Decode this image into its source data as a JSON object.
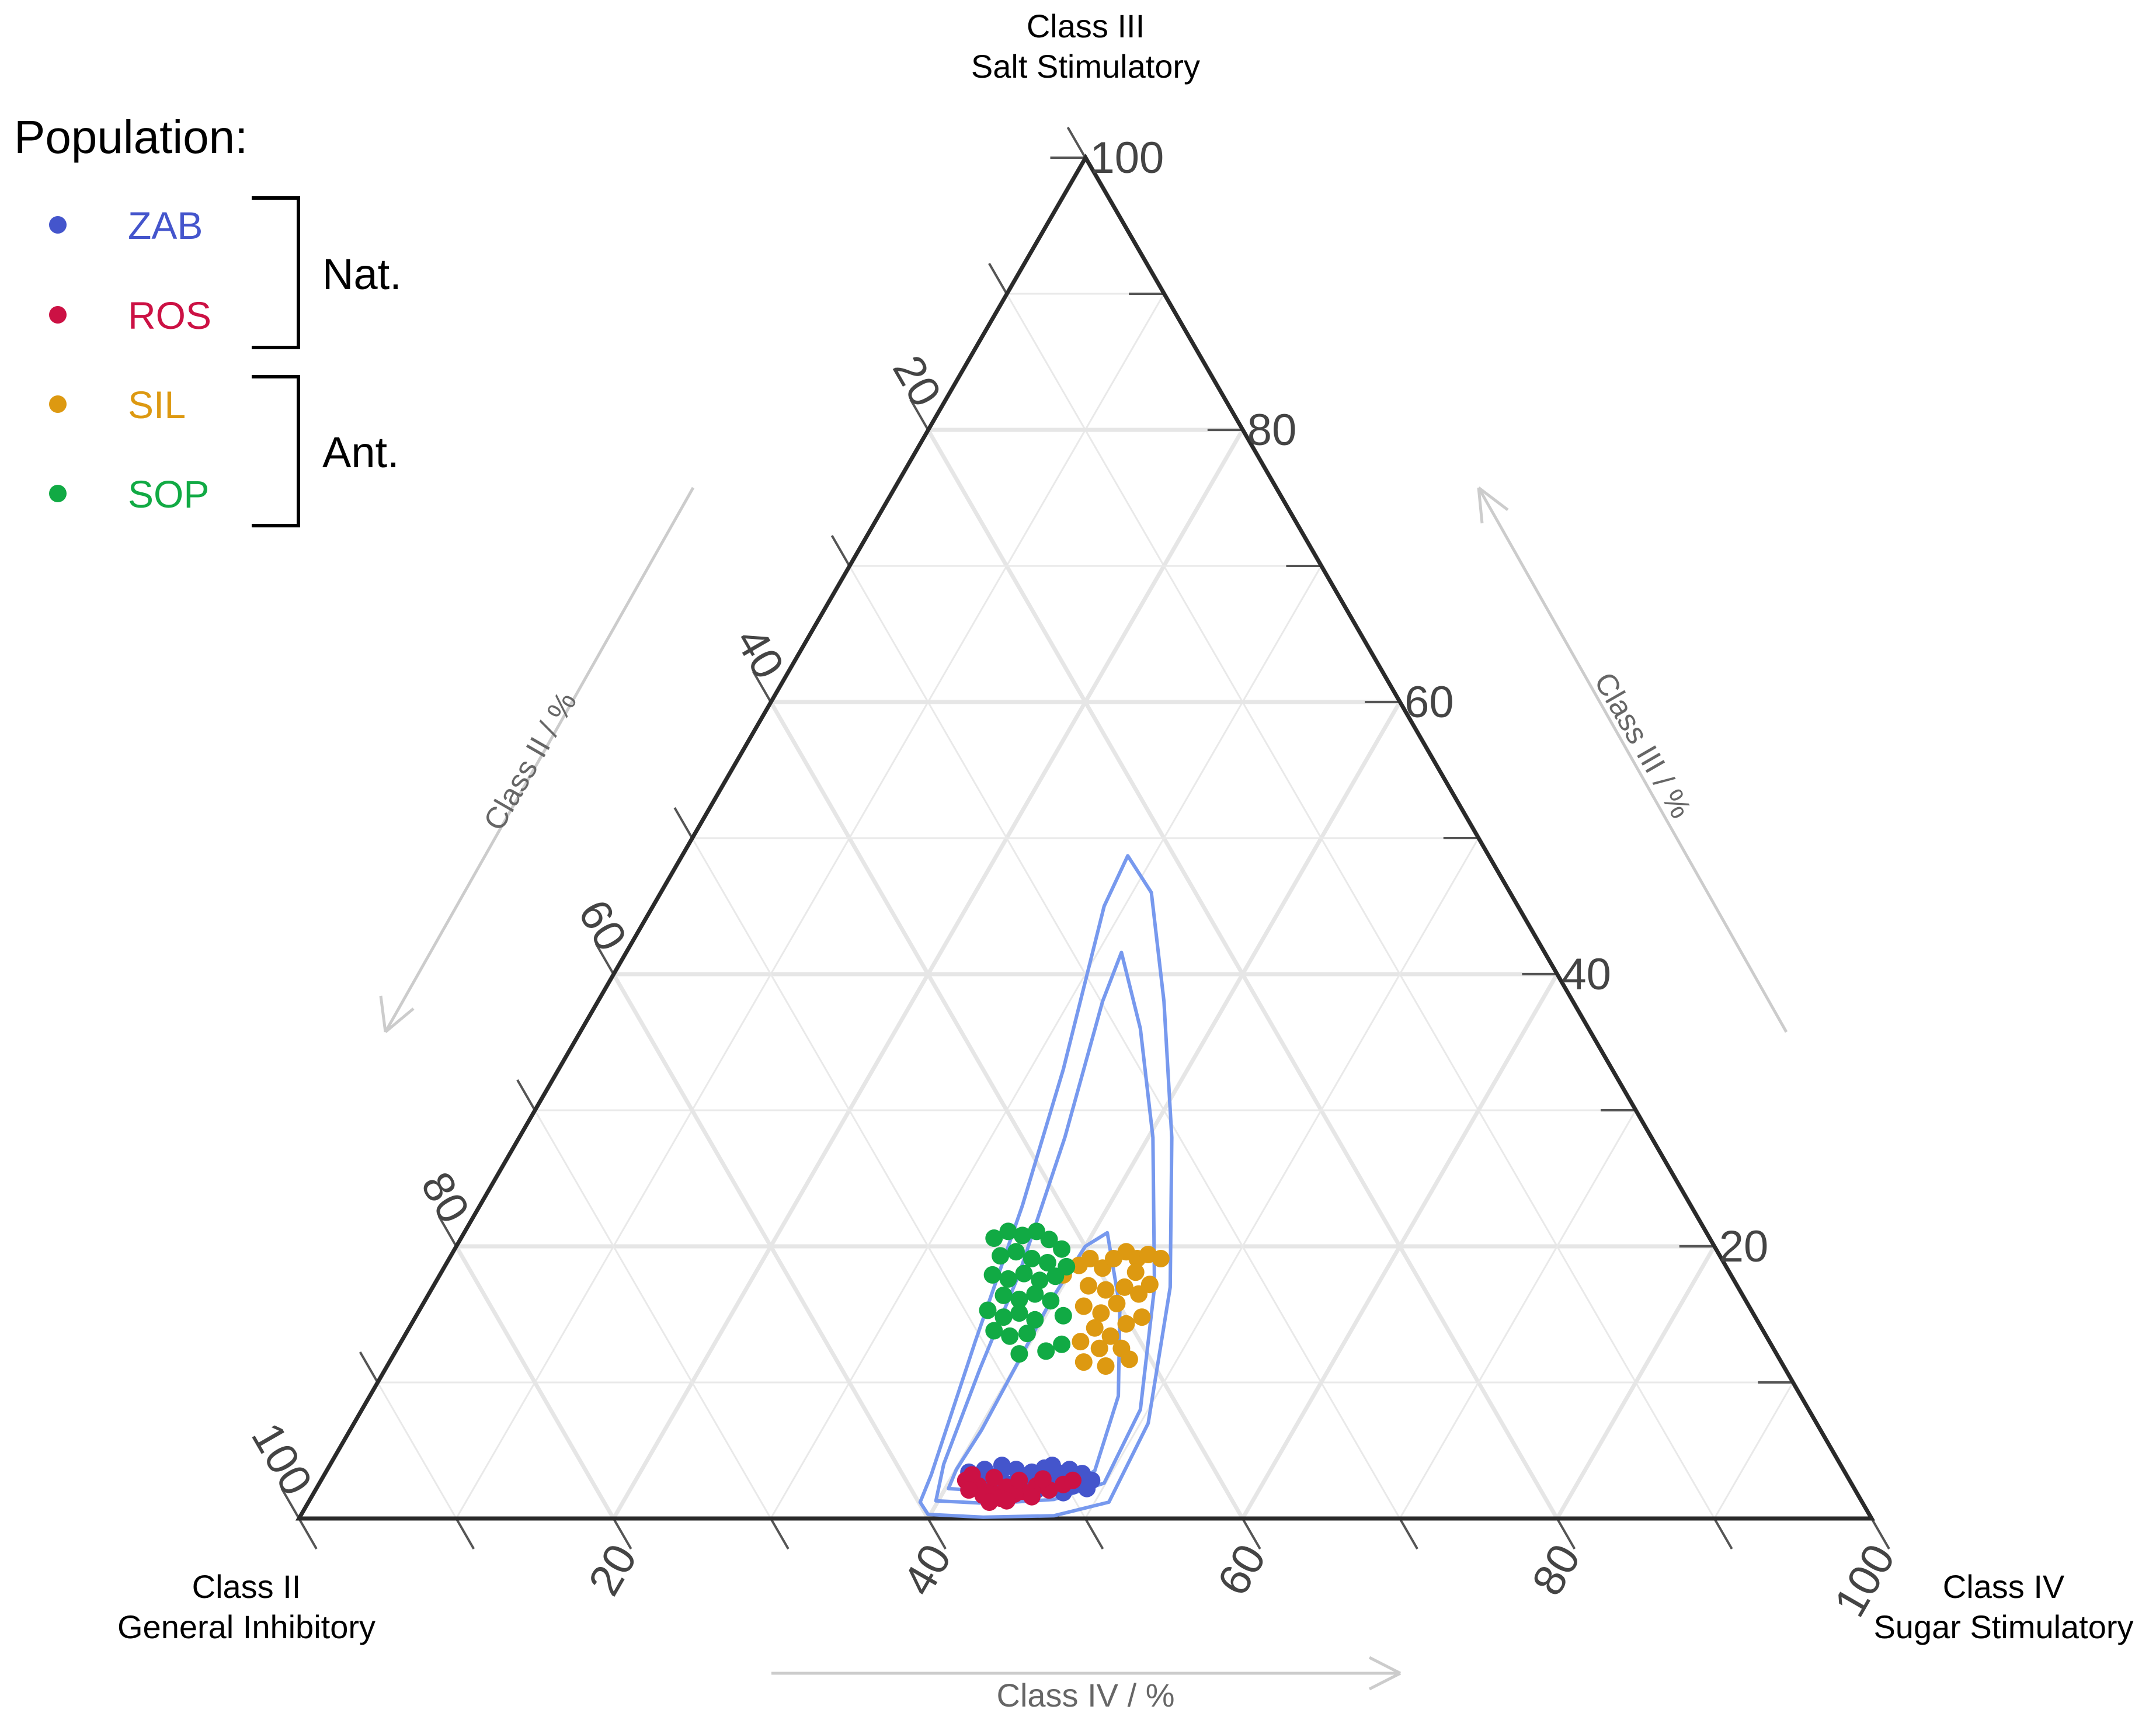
{
  "chart_data": {
    "type": "scatter",
    "subtype": "ternary",
    "vertices": {
      "top": [
        "Class III",
        "Salt Stimulatory"
      ],
      "left": [
        "Class II",
        "General Inhibitory"
      ],
      "right": [
        "Class IV",
        "Sugar Stimulatory"
      ]
    },
    "axis_titles": {
      "left_side": "Class II / %",
      "right_side": "Class III / %",
      "bottom": "Class IV / %"
    },
    "ticks": {
      "right_side": [
        "20",
        "40",
        "60",
        "80",
        "100"
      ],
      "left_side": [
        "20",
        "40",
        "60",
        "80",
        "100"
      ],
      "bottom": [
        "20",
        "40",
        "60",
        "80",
        "100"
      ]
    },
    "range": [
      0,
      100
    ],
    "grid": true,
    "legend": {
      "title": "Population:",
      "placement": "top-left",
      "items": [
        {
          "label": "ZAB",
          "color": "#4455cc"
        },
        {
          "label": "ROS",
          "color": "#cc1144"
        },
        {
          "label": "SIL",
          "color": "#dd9911"
        },
        {
          "label": "SOP",
          "color": "#11aa44"
        }
      ],
      "groups": [
        {
          "label": "Nat.",
          "members": [
            "ZAB",
            "ROS"
          ]
        },
        {
          "label": "Ant.",
          "members": [
            "SIL",
            "SOP"
          ]
        }
      ]
    },
    "contour_color": "#7799ee",
    "contours_xy": [
      [
        [
          40,
          0.3
        ],
        [
          43.5,
          0.1
        ],
        [
          48,
          0.2
        ],
        [
          51.5,
          1.2
        ],
        [
          54,
          7
        ],
        [
          55.4,
          17
        ],
        [
          55.5,
          28
        ],
        [
          55,
          38
        ],
        [
          54.2,
          46
        ],
        [
          52.7,
          48.7
        ],
        [
          51.2,
          45
        ],
        [
          48.6,
          33
        ],
        [
          46,
          23
        ],
        [
          43,
          13
        ],
        [
          40.2,
          3.2
        ],
        [
          39.5,
          1.2
        ],
        [
          40,
          0.3
        ]
      ],
      [
        [
          40.5,
          1.3
        ],
        [
          44,
          1.1
        ],
        [
          48,
          1.4
        ],
        [
          51.2,
          2.6
        ],
        [
          53.5,
          8
        ],
        [
          54.4,
          17
        ],
        [
          54.3,
          28
        ],
        [
          53.5,
          36
        ],
        [
          52.3,
          41.6
        ],
        [
          51.1,
          38
        ],
        [
          48.7,
          28
        ],
        [
          45.8,
          18
        ],
        [
          43.3,
          11
        ],
        [
          41,
          4
        ],
        [
          40.5,
          1.3
        ]
      ],
      [
        [
          41.3,
          2.2
        ],
        [
          45,
          1.9
        ],
        [
          48.5,
          2.1
        ],
        [
          50.6,
          3.5
        ],
        [
          52.1,
          9
        ],
        [
          52.2,
          15.5
        ],
        [
          51.4,
          21
        ],
        [
          50,
          20
        ],
        [
          47.8,
          16
        ],
        [
          45.5,
          11
        ],
        [
          43.4,
          6.5
        ],
        [
          41.8,
          3.6
        ],
        [
          41.3,
          2.2
        ]
      ]
    ],
    "series": [
      {
        "name": "ZAB",
        "points_xy": [
          [
            42.6,
            3.4
          ],
          [
            43.6,
            3.6
          ],
          [
            44.6,
            3.3
          ],
          [
            45.6,
            3.6
          ],
          [
            46.6,
            3.4
          ],
          [
            47.4,
            3.7
          ],
          [
            48.2,
            3.4
          ],
          [
            49,
            3.6
          ],
          [
            49.8,
            3.3
          ],
          [
            50.4,
            2.8
          ],
          [
            44,
            2.6
          ],
          [
            45.2,
            2.5
          ],
          [
            46.2,
            2.7
          ],
          [
            47.3,
            2.4
          ],
          [
            48.2,
            2.6
          ],
          [
            49.2,
            2.4
          ],
          [
            50.1,
            2.2
          ],
          [
            43.1,
            2.9
          ],
          [
            46.9,
            2.1
          ],
          [
            48.6,
            1.9
          ],
          [
            44.7,
            3.9
          ],
          [
            47.9,
            3.9
          ]
        ]
      },
      {
        "name": "ROS",
        "points_xy": [
          [
            42.4,
            2.8
          ],
          [
            43.2,
            2.4
          ],
          [
            44,
            2
          ],
          [
            45,
            2.3
          ],
          [
            46,
            2
          ],
          [
            46.9,
            2.4
          ],
          [
            47.7,
            2.1
          ],
          [
            48.6,
            2.5
          ],
          [
            43.5,
            1.7
          ],
          [
            44.6,
            1.5
          ],
          [
            45.5,
            1.8
          ],
          [
            46.6,
            1.6
          ],
          [
            42.8,
            3.2
          ],
          [
            44.2,
            3
          ],
          [
            45.8,
            2.8
          ],
          [
            47.3,
            2.9
          ],
          [
            43.9,
            1.2
          ],
          [
            49.2,
            2.8
          ],
          [
            42.6,
            2.1
          ],
          [
            45,
            1.3
          ]
        ]
      },
      {
        "name": "SIL",
        "points_xy": [
          [
            49.6,
            18.6
          ],
          [
            50.3,
            19.1
          ],
          [
            51.1,
            18.4
          ],
          [
            51.8,
            19.1
          ],
          [
            52.6,
            19.6
          ],
          [
            53.3,
            19.1
          ],
          [
            54,
            19.4
          ],
          [
            54.8,
            19.1
          ],
          [
            50.2,
            17.1
          ],
          [
            51.3,
            16.8
          ],
          [
            52.5,
            17
          ],
          [
            53.4,
            16.5
          ],
          [
            54.1,
            17.2
          ],
          [
            49.9,
            15.6
          ],
          [
            51,
            15.1
          ],
          [
            52,
            15.8
          ],
          [
            52.6,
            14.3
          ],
          [
            53.6,
            14.8
          ],
          [
            50.6,
            14
          ],
          [
            51.6,
            13.4
          ],
          [
            49.7,
            13
          ],
          [
            50.9,
            12.5
          ],
          [
            52.3,
            12.5
          ],
          [
            52.8,
            11.7
          ],
          [
            49.9,
            11.5
          ],
          [
            51.3,
            11.2
          ],
          [
            48.6,
            17.9
          ],
          [
            53.2,
            18.1
          ]
        ]
      },
      {
        "name": "SOP",
        "points_xy": [
          [
            44.2,
            20.6
          ],
          [
            45.1,
            21.1
          ],
          [
            46,
            20.8
          ],
          [
            46.9,
            21.1
          ],
          [
            47.7,
            20.5
          ],
          [
            48.5,
            19.8
          ],
          [
            44.6,
            19.3
          ],
          [
            45.6,
            19.6
          ],
          [
            46.6,
            19.1
          ],
          [
            47.6,
            18.8
          ],
          [
            48.8,
            18.5
          ],
          [
            44.1,
            17.9
          ],
          [
            45.1,
            17.6
          ],
          [
            46.1,
            18
          ],
          [
            47.1,
            17.5
          ],
          [
            48.1,
            17.8
          ],
          [
            44.8,
            16.4
          ],
          [
            45.8,
            16.1
          ],
          [
            46.8,
            16.5
          ],
          [
            47.8,
            16
          ],
          [
            43.8,
            15.3
          ],
          [
            44.8,
            14.8
          ],
          [
            45.8,
            15.1
          ],
          [
            46.8,
            14.6
          ],
          [
            48.6,
            14.9
          ],
          [
            44.2,
            13.8
          ],
          [
            45.2,
            13.4
          ],
          [
            46.3,
            13.6
          ],
          [
            47.5,
            12.3
          ],
          [
            48.5,
            12.8
          ],
          [
            45.8,
            12.1
          ]
        ]
      }
    ]
  }
}
